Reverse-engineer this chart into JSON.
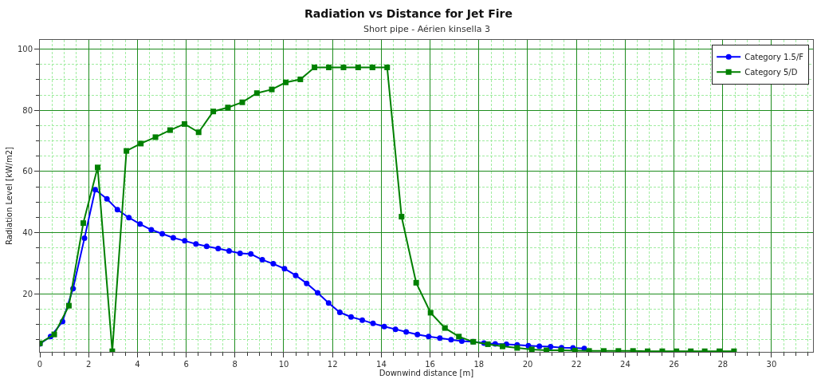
{
  "chart_data": {
    "type": "line",
    "title": "Radiation vs Distance for Jet Fire",
    "subtitle": "Short pipe - Aérien kinsella 3",
    "xlabel": "Downwind distance [m]",
    "ylabel": "Radiation Level [kW/m2]",
    "xlim": [
      0,
      31.7
    ],
    "ylim": [
      1,
      103
    ],
    "xticks": [
      0,
      {
        "value": 0.5,
        "label": null
      },
      {
        "value": 1,
        "label": null
      },
      {
        "value": 1.5,
        "label": null
      },
      2,
      {
        "value": 2.5,
        "label": null
      },
      {
        "value": 3,
        "label": null
      },
      {
        "value": 3.5,
        "label": null
      },
      4,
      {
        "value": 4.5,
        "label": null
      },
      {
        "value": 5,
        "label": null
      },
      {
        "value": 5.5,
        "label": null
      },
      6,
      {
        "value": 6.5,
        "label": null
      },
      {
        "value": 7,
        "label": null
      },
      {
        "value": 7.5,
        "label": null
      },
      8,
      {
        "value": 8.5,
        "label": null
      },
      {
        "value": 9,
        "label": null
      },
      {
        "value": 9.5,
        "label": null
      },
      10,
      {
        "value": 10.5,
        "label": null
      },
      {
        "value": 11,
        "label": null
      },
      {
        "value": 11.5,
        "label": null
      },
      12,
      {
        "value": 12.5,
        "label": null
      },
      {
        "value": 13,
        "label": null
      },
      {
        "value": 13.5,
        "label": null
      },
      14,
      {
        "value": 14.5,
        "label": null
      },
      {
        "value": 15,
        "label": null
      },
      {
        "value": 15.5,
        "label": null
      },
      16,
      {
        "value": 16.5,
        "label": null
      },
      {
        "value": 17,
        "label": null
      },
      {
        "value": 17.5,
        "label": null
      },
      18,
      {
        "value": 18.5,
        "label": null
      },
      {
        "value": 19,
        "label": null
      },
      {
        "value": 19.5,
        "label": null
      },
      20,
      {
        "value": 20.5,
        "label": null
      },
      {
        "value": 21,
        "label": null
      },
      {
        "value": 21.5,
        "label": null
      },
      22,
      {
        "value": 22.5,
        "label": null
      },
      {
        "value": 23,
        "label": null
      },
      {
        "value": 23.5,
        "label": null
      },
      24,
      {
        "value": 24.5,
        "label": null
      },
      {
        "value": 25,
        "label": null
      },
      {
        "value": 25.5,
        "label": null
      },
      26,
      {
        "value": 26.5,
        "label": null
      },
      {
        "value": 27,
        "label": null
      },
      {
        "value": 27.5,
        "label": null
      },
      28,
      {
        "value": 28.5,
        "label": null
      },
      {
        "value": 29,
        "label": null
      },
      {
        "value": 29.5,
        "label": null
      },
      30,
      {
        "value": 30.5,
        "label": null
      },
      {
        "value": 31,
        "label": null
      },
      {
        "value": 31.5,
        "label": null
      }
    ],
    "yticks": [
      {
        "value": 5,
        "label": null
      },
      {
        "value": 10,
        "label": null
      },
      {
        "value": 15,
        "label": null
      },
      20,
      {
        "value": 25,
        "label": null
      },
      {
        "value": 30,
        "label": null
      },
      {
        "value": 35,
        "label": null
      },
      40,
      {
        "value": 45,
        "label": null
      },
      {
        "value": 50,
        "label": null
      },
      {
        "value": 55,
        "label": null
      },
      60,
      {
        "value": 65,
        "label": null
      },
      {
        "value": 70,
        "label": null
      },
      {
        "value": 75,
        "label": null
      },
      80,
      {
        "value": 85,
        "label": null
      },
      {
        "value": 90,
        "label": null
      },
      {
        "value": 95,
        "label": null
      },
      100
    ],
    "grid": true,
    "legend": "top right",
    "series": [
      {
        "name": "Category 1.5/F",
        "color": "#0000ff",
        "marker": "circle",
        "x": [
          0,
          0.44,
          0.93,
          1.36,
          1.83,
          2.27,
          2.75,
          3.18,
          3.65,
          4.11,
          4.57,
          5.02,
          5.47,
          5.94,
          6.4,
          6.84,
          7.31,
          7.76,
          8.21,
          8.65,
          9.12,
          9.57,
          10.03,
          10.49,
          10.94,
          11.39,
          11.84,
          12.3,
          12.76,
          13.22,
          13.66,
          14.12,
          14.58,
          15.02,
          15.48,
          15.94,
          16.4,
          16.86,
          17.3,
          17.76,
          18.21,
          18.67,
          19.13,
          19.57,
          20.03,
          20.48,
          20.94,
          21.39,
          21.86,
          22.32
        ],
        "values": [
          3.6,
          6.0,
          10.9,
          21.7,
          38.2,
          54.0,
          51.0,
          47.5,
          44.9,
          42.8,
          40.9,
          39.6,
          38.3,
          37.3,
          36.3,
          35.5,
          34.8,
          34.0,
          33.2,
          33.0,
          31.1,
          29.8,
          28.2,
          26.0,
          23.4,
          20.3,
          17.0,
          13.9,
          12.4,
          11.4,
          10.3,
          9.3,
          8.4,
          7.5,
          6.7,
          6.0,
          5.5,
          5.0,
          4.5,
          4.3,
          3.9,
          3.6,
          3.5,
          3.3,
          3.0,
          2.8,
          2.7,
          2.4,
          2.3,
          2.1
        ]
      },
      {
        "name": "Category 5/D",
        "color": "#008000",
        "marker": "square",
        "x": [
          0,
          0.59,
          1.19,
          1.78,
          2.37,
          2.97,
          3.55,
          4.14,
          4.74,
          5.34,
          5.93,
          6.51,
          7.11,
          7.71,
          8.3,
          8.9,
          9.51,
          10.08,
          10.68,
          11.26,
          11.85,
          12.45,
          13.05,
          13.64,
          14.24,
          14.83,
          15.43,
          16.02,
          16.61,
          17.18,
          17.77,
          18.37,
          18.97,
          19.57,
          20.17,
          20.77,
          21.37,
          21.94,
          22.52,
          23.12,
          23.72,
          24.32,
          24.92,
          25.52,
          26.1,
          26.69,
          27.26,
          27.86,
          28.46
        ],
        "values": [
          3.8,
          6.7,
          16.1,
          43.1,
          61.3,
          1.2,
          66.7,
          69.1,
          71.2,
          73.5,
          75.5,
          72.8,
          79.6,
          80.9,
          82.6,
          85.6,
          86.8,
          89.1,
          90.1,
          94.0,
          94.0,
          94.0,
          94.0,
          94.0,
          94.0,
          45.2,
          23.6,
          13.8,
          8.8,
          6.0,
          4.3,
          3.5,
          2.8,
          2.3,
          1.8,
          1.5,
          1.5,
          1.4,
          1.3,
          1.3,
          1.3,
          1.3,
          1.2,
          1.2,
          1.2,
          1.2,
          1.2,
          1.2,
          1.2
        ]
      }
    ]
  }
}
